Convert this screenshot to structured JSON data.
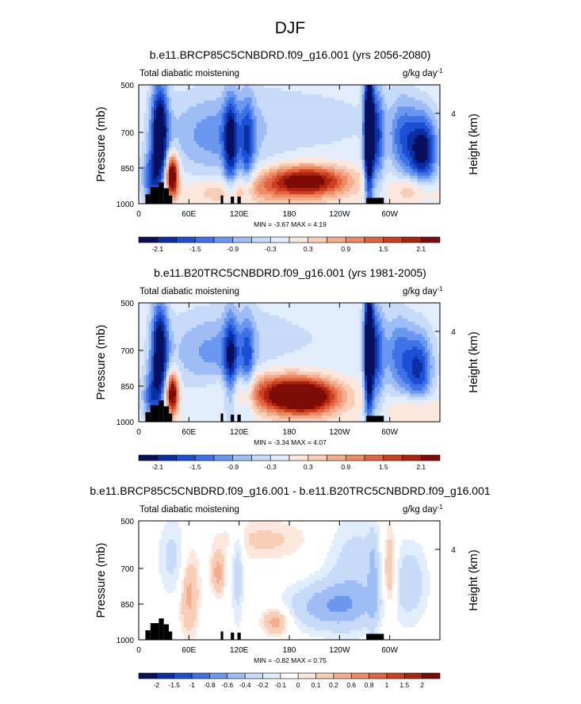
{
  "figure": {
    "title": "DJF"
  },
  "chart_data": [
    {
      "type": "heatmap",
      "title": "b.e11.BRCP85C5CNBDRD.f09_g16.001 (yrs 2056-2080)",
      "subtitle_left": "Total diabatic moistening",
      "units": "g/kg day",
      "units_exp": "-1",
      "ylabel": "Pressure (mb)",
      "ylabel_right": "Height (km)",
      "y_ticks": [
        "500",
        "700",
        "850",
        "1000"
      ],
      "y_tick_values": [
        500,
        700,
        850,
        1000
      ],
      "y_right_ticks": [
        "4"
      ],
      "x_ticks": [
        "0",
        "60E",
        "120E",
        "180",
        "120W",
        "60W"
      ],
      "x_tick_values": [
        0,
        60,
        120,
        180,
        240,
        300
      ],
      "xlim": [
        0,
        360
      ],
      "ylim": [
        500,
        1000
      ],
      "min_max_text": "MIN = -3.67  MAX = 4.19",
      "colorbar_labels": [
        "-2.1",
        "-1.5",
        "-0.9",
        "-0.3",
        "0.3",
        "0.9",
        "1.5",
        "2.1"
      ],
      "colors": [
        "#08105e",
        "#0b2fa3",
        "#1c4fd3",
        "#3f72e6",
        "#6a97ef",
        "#9dbdf4",
        "#c7dbf8",
        "#e2edfb",
        "#fbe7dc",
        "#f8cdb6",
        "#f3ad8c",
        "#ec8a64",
        "#e0643f",
        "#cc4020",
        "#ac2410",
        "#7d0c07"
      ],
      "colorbar_count": 16,
      "features": [
        {
          "lon": 25,
          "p": 700,
          "v": -2.6,
          "sx": 7,
          "sy": 150
        },
        {
          "lon": 40,
          "p": 880,
          "v": 3.2,
          "sx": 5,
          "sy": 60
        },
        {
          "lon": 15,
          "p": 900,
          "v": -1.4,
          "sx": 8,
          "sy": 80
        },
        {
          "lon": 110,
          "p": 750,
          "v": -1.6,
          "sx": 6,
          "sy": 150
        },
        {
          "lon": 130,
          "p": 760,
          "v": -1.2,
          "sx": 6,
          "sy": 150
        },
        {
          "lon": 90,
          "p": 720,
          "v": -0.8,
          "sx": 40,
          "sy": 120
        },
        {
          "lon": 200,
          "p": 905,
          "v": 2.7,
          "sx": 35,
          "sy": 45
        },
        {
          "lon": 120,
          "p": 950,
          "v": 0.7,
          "sx": 45,
          "sy": 40
        },
        {
          "lon": 275,
          "p": 700,
          "v": -3.3,
          "sx": 4,
          "sy": 200
        },
        {
          "lon": 285,
          "p": 720,
          "v": -1.5,
          "sx": 6,
          "sy": 150
        },
        {
          "lon": 340,
          "p": 780,
          "v": -2.2,
          "sx": 12,
          "sy": 110
        },
        {
          "lon": 315,
          "p": 720,
          "v": -1.2,
          "sx": 12,
          "sy": 120
        },
        {
          "lon": 330,
          "p": 940,
          "v": 0.9,
          "sx": 18,
          "sy": 40
        },
        {
          "lon": 180,
          "p": 650,
          "v": -0.4,
          "sx": 120,
          "sy": 150
        }
      ],
      "terrain": [
        {
          "lon0": 8,
          "lon1": 14,
          "p": 960
        },
        {
          "lon0": 14,
          "lon1": 24,
          "p": 930
        },
        {
          "lon0": 24,
          "lon1": 30,
          "p": 910
        },
        {
          "lon0": 30,
          "lon1": 36,
          "p": 935
        },
        {
          "lon0": 36,
          "lon1": 40,
          "p": 965
        },
        {
          "lon0": 98,
          "lon1": 101,
          "p": 965
        },
        {
          "lon0": 110,
          "lon1": 114,
          "p": 970
        },
        {
          "lon0": 118,
          "lon1": 122,
          "p": 970
        },
        {
          "lon0": 272,
          "lon1": 293,
          "p": 975
        }
      ]
    },
    {
      "type": "heatmap",
      "title": "b.e11.B20TRC5CNBDRD.f09_g16.001 (yrs 1981-2005)",
      "subtitle_left": "Total diabatic moistening",
      "units": "g/kg day",
      "units_exp": "-1",
      "ylabel": "Pressure (mb)",
      "ylabel_right": "Height (km)",
      "y_ticks": [
        "500",
        "700",
        "850",
        "1000"
      ],
      "y_tick_values": [
        500,
        700,
        850,
        1000
      ],
      "y_right_ticks": [
        "4"
      ],
      "x_ticks": [
        "0",
        "60E",
        "120E",
        "180",
        "120W",
        "60W"
      ],
      "x_tick_values": [
        0,
        60,
        120,
        180,
        240,
        300
      ],
      "xlim": [
        0,
        360
      ],
      "ylim": [
        500,
        1000
      ],
      "min_max_text": "MIN = -3.34  MAX = 4.07",
      "colorbar_labels": [
        "-2.1",
        "-1.5",
        "-0.9",
        "-0.3",
        "0.3",
        "0.9",
        "1.5",
        "2.1"
      ],
      "colors": [
        "#08105e",
        "#0b2fa3",
        "#1c4fd3",
        "#3f72e6",
        "#6a97ef",
        "#9dbdf4",
        "#c7dbf8",
        "#e2edfb",
        "#fbe7dc",
        "#f8cdb6",
        "#f3ad8c",
        "#ec8a64",
        "#e0643f",
        "#cc4020",
        "#ac2410",
        "#7d0c07"
      ],
      "colorbar_count": 16,
      "features": [
        {
          "lon": 25,
          "p": 700,
          "v": -2.4,
          "sx": 7,
          "sy": 150
        },
        {
          "lon": 40,
          "p": 880,
          "v": 3.0,
          "sx": 5,
          "sy": 60
        },
        {
          "lon": 15,
          "p": 900,
          "v": -1.3,
          "sx": 8,
          "sy": 80
        },
        {
          "lon": 110,
          "p": 750,
          "v": -1.5,
          "sx": 6,
          "sy": 150
        },
        {
          "lon": 130,
          "p": 760,
          "v": -1.1,
          "sx": 6,
          "sy": 150
        },
        {
          "lon": 90,
          "p": 720,
          "v": -0.8,
          "sx": 40,
          "sy": 120
        },
        {
          "lon": 195,
          "p": 895,
          "v": 3.4,
          "sx": 30,
          "sy": 50
        },
        {
          "lon": 150,
          "p": 860,
          "v": 1.0,
          "sx": 40,
          "sy": 60
        },
        {
          "lon": 275,
          "p": 700,
          "v": -3.1,
          "sx": 4,
          "sy": 200
        },
        {
          "lon": 285,
          "p": 720,
          "v": -1.4,
          "sx": 6,
          "sy": 150
        },
        {
          "lon": 335,
          "p": 780,
          "v": -1.7,
          "sx": 12,
          "sy": 110
        },
        {
          "lon": 310,
          "p": 720,
          "v": -1.1,
          "sx": 12,
          "sy": 120
        },
        {
          "lon": 330,
          "p": 940,
          "v": 0.8,
          "sx": 18,
          "sy": 40
        },
        {
          "lon": 180,
          "p": 650,
          "v": -0.3,
          "sx": 120,
          "sy": 150
        }
      ],
      "terrain": [
        {
          "lon0": 8,
          "lon1": 14,
          "p": 960
        },
        {
          "lon0": 14,
          "lon1": 24,
          "p": 930
        },
        {
          "lon0": 24,
          "lon1": 30,
          "p": 910
        },
        {
          "lon0": 30,
          "lon1": 36,
          "p": 935
        },
        {
          "lon0": 36,
          "lon1": 40,
          "p": 965
        },
        {
          "lon0": 98,
          "lon1": 101,
          "p": 965
        },
        {
          "lon0": 110,
          "lon1": 114,
          "p": 970
        },
        {
          "lon0": 118,
          "lon1": 122,
          "p": 970
        },
        {
          "lon0": 272,
          "lon1": 293,
          "p": 975
        }
      ]
    },
    {
      "type": "heatmap",
      "title": "b.e11.BRCP85C5CNBDRD.f09_g16.001 - b.e11.B20TRC5CNBDRD.f09_g16.001",
      "subtitle_left": "Total diabatic moistening",
      "units": "g/kg day",
      "units_exp": "-1",
      "ylabel": "Pressure (mb)",
      "ylabel_right": "Height (km)",
      "y_ticks": [
        "500",
        "700",
        "850",
        "1000"
      ],
      "y_tick_values": [
        500,
        700,
        850,
        1000
      ],
      "y_right_ticks": [
        "4"
      ],
      "x_ticks": [
        "0",
        "60E",
        "120E",
        "180",
        "120W",
        "60W"
      ],
      "x_tick_values": [
        0,
        60,
        120,
        180,
        240,
        300
      ],
      "xlim": [
        0,
        360
      ],
      "ylim": [
        500,
        1000
      ],
      "min_max_text": "MIN = -0.82  MAX = 0.75",
      "colorbar_labels": [
        "-2",
        "-1.5",
        "-1",
        "-0.8",
        "-0.6",
        "-0.4",
        "-0.2",
        "-0.1",
        "0",
        "0.1",
        "0.2",
        "0.6",
        "0.8",
        "1",
        "1.5",
        "2"
      ],
      "colors": [
        "#08105e",
        "#0b2fa3",
        "#1c4fd3",
        "#3f72e6",
        "#6a97ef",
        "#9dbdf4",
        "#c7dbf8",
        "#e2edfb",
        "#ffffff",
        "#fbe7dc",
        "#f8cdb6",
        "#f3ad8c",
        "#ec8a64",
        "#e0643f",
        "#cc4020",
        "#ac2410",
        "#7d0c07"
      ],
      "colorbar_count": 17,
      "features": [
        {
          "lon": 230,
          "p": 860,
          "v": -0.55,
          "sx": 35,
          "sy": 70
        },
        {
          "lon": 260,
          "p": 700,
          "v": -0.3,
          "sx": 25,
          "sy": 150
        },
        {
          "lon": 40,
          "p": 650,
          "v": -0.25,
          "sx": 12,
          "sy": 120
        },
        {
          "lon": 60,
          "p": 800,
          "v": 0.25,
          "sx": 8,
          "sy": 120
        },
        {
          "lon": 95,
          "p": 720,
          "v": 0.25,
          "sx": 6,
          "sy": 60
        },
        {
          "lon": 118,
          "p": 720,
          "v": -0.3,
          "sx": 5,
          "sy": 150
        },
        {
          "lon": 300,
          "p": 720,
          "v": 0.35,
          "sx": 6,
          "sy": 130
        },
        {
          "lon": 280,
          "p": 750,
          "v": -0.3,
          "sx": 4,
          "sy": 150
        },
        {
          "lon": 325,
          "p": 760,
          "v": -0.3,
          "sx": 15,
          "sy": 120
        },
        {
          "lon": 165,
          "p": 920,
          "v": 0.3,
          "sx": 12,
          "sy": 40
        },
        {
          "lon": 150,
          "p": 580,
          "v": 0.12,
          "sx": 40,
          "sy": 60
        }
      ],
      "terrain": [
        {
          "lon0": 8,
          "lon1": 14,
          "p": 960
        },
        {
          "lon0": 14,
          "lon1": 24,
          "p": 930
        },
        {
          "lon0": 24,
          "lon1": 30,
          "p": 910
        },
        {
          "lon0": 30,
          "lon1": 36,
          "p": 935
        },
        {
          "lon0": 36,
          "lon1": 40,
          "p": 965
        },
        {
          "lon0": 98,
          "lon1": 101,
          "p": 965
        },
        {
          "lon0": 110,
          "lon1": 114,
          "p": 970
        },
        {
          "lon0": 118,
          "lon1": 122,
          "p": 970
        },
        {
          "lon0": 272,
          "lon1": 293,
          "p": 975
        }
      ]
    }
  ]
}
